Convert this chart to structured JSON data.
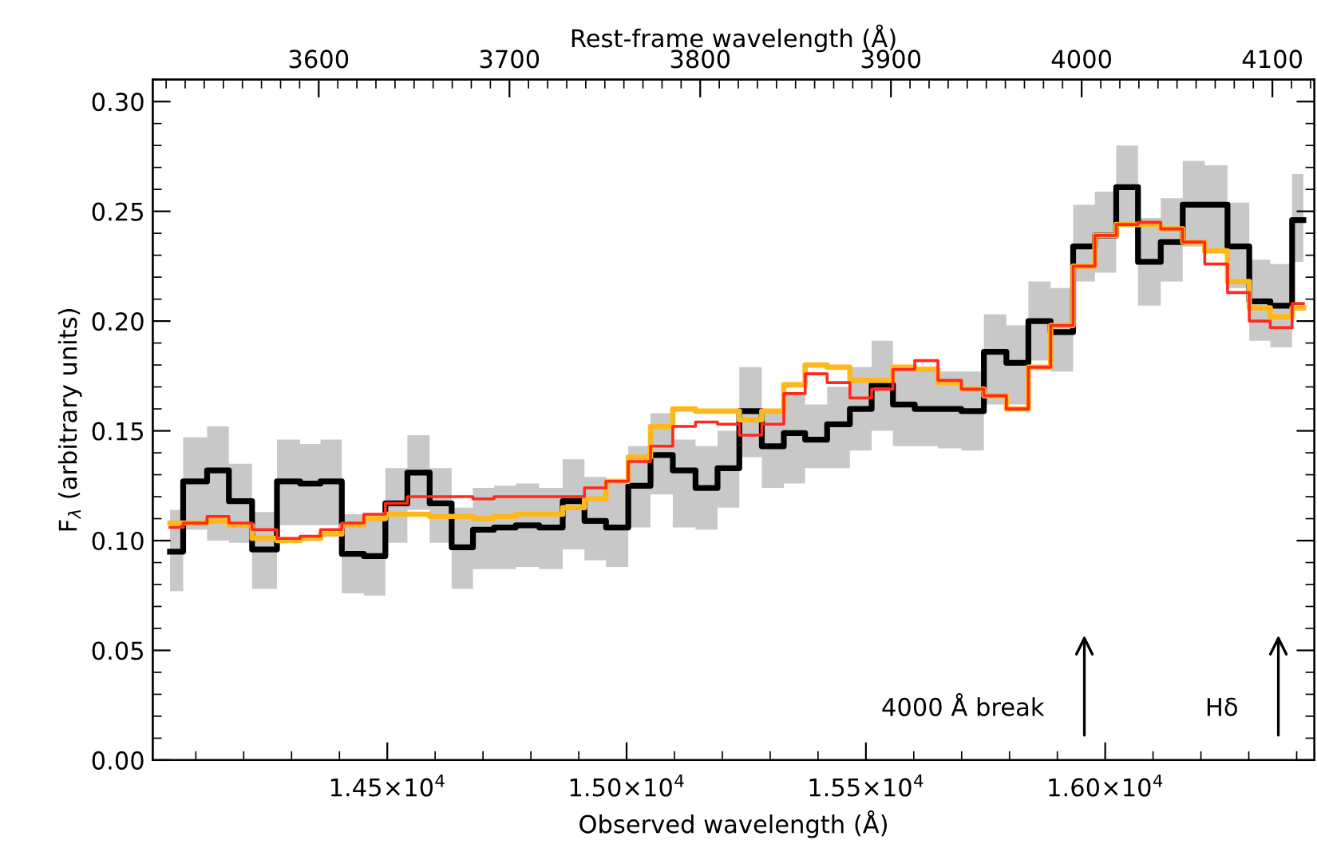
{
  "chart_data": {
    "type": "step",
    "xlabel": "Observed wavelength (Å)",
    "ylabel": "F$_{λ}$ (arbitrary units)",
    "x2label": "Rest-frame wavelength (Å)",
    "xlim": [
      14010,
      16437
    ],
    "ylim": [
      0,
      0.31
    ],
    "x2lim": [
      3513,
      4122
    ],
    "xticks": [
      {
        "value": 14500,
        "label": "1.45×10$^{4}$"
      },
      {
        "value": 15000,
        "label": "1.50×10$^{4}$"
      },
      {
        "value": 15500,
        "label": "1.55×10$^{4}$"
      },
      {
        "value": 16000,
        "label": "1.60×10$^{4}$"
      }
    ],
    "x2ticks": [
      3600,
      3700,
      3800,
      3900,
      4000,
      4100
    ],
    "yticks": [
      {
        "value": 0,
        "label": "0.00"
      },
      {
        "value": 0.05,
        "label": "0.05"
      },
      {
        "value": 0.1,
        "label": "0.10"
      },
      {
        "value": 0.15,
        "label": "0.15"
      },
      {
        "value": 0.2,
        "label": "0.20"
      },
      {
        "value": 0.25,
        "label": "0.25"
      },
      {
        "value": 0.3,
        "label": "0.30"
      }
    ],
    "x": [
      14046,
      14101,
      14146,
      14192,
      14243,
      14296,
      14340,
      14381,
      14429,
      14473,
      14519,
      14565,
      14612,
      14657,
      14701,
      14745,
      14792,
      14843,
      14890,
      14934,
      14980,
      15027,
      15073,
      15120,
      15168,
      15212,
      15259,
      15306,
      15351,
      15395,
      15443,
      15490,
      15534,
      15579,
      15625,
      15676,
      15723,
      15770,
      15817,
      15862,
      15910,
      15956,
      16001,
      16045,
      16092,
      16140,
      16184,
      16232,
      16279,
      16323,
      16367,
      16414
    ],
    "series": [
      {
        "color": "#000000",
        "values": [
          0.095,
          0.127,
          0.132,
          0.118,
          0.096,
          0.127,
          0.126,
          0.127,
          0.094,
          0.093,
          0.117,
          0.131,
          0.117,
          0.097,
          0.105,
          0.106,
          0.107,
          0.106,
          0.118,
          0.109,
          0.106,
          0.125,
          0.139,
          0.132,
          0.124,
          0.133,
          0.159,
          0.143,
          0.149,
          0.146,
          0.153,
          0.16,
          0.171,
          0.162,
          0.16,
          0.16,
          0.159,
          0.186,
          0.181,
          0.2,
          0.195,
          0.234,
          0.239,
          0.261,
          0.227,
          0.236,
          0.253,
          0.253,
          0.234,
          0.209,
          0.207,
          0.246
        ],
        "lower": [
          0.077,
          0.105,
          0.1,
          0.099,
          0.078,
          0.107,
          0.107,
          0.107,
          0.076,
          0.075,
          0.099,
          0.114,
          0.099,
          0.078,
          0.087,
          0.087,
          0.088,
          0.087,
          0.096,
          0.091,
          0.088,
          0.106,
          0.121,
          0.106,
          0.105,
          0.115,
          0.138,
          0.124,
          0.126,
          0.133,
          0.133,
          0.141,
          0.15,
          0.143,
          0.143,
          0.142,
          0.141,
          0.162,
          0.162,
          0.182,
          0.177,
          0.218,
          0.222,
          0.244,
          0.207,
          0.218,
          0.234,
          0.232,
          0.215,
          0.191,
          0.188,
          0.227
        ],
        "upper": [
          0.114,
          0.147,
          0.152,
          0.135,
          0.113,
          0.146,
          0.144,
          0.146,
          0.112,
          0.112,
          0.133,
          0.148,
          0.133,
          0.115,
          0.124,
          0.125,
          0.126,
          0.124,
          0.137,
          0.129,
          0.127,
          0.143,
          0.158,
          0.146,
          0.143,
          0.15,
          0.179,
          0.158,
          0.167,
          0.162,
          0.17,
          0.179,
          0.191,
          0.179,
          0.179,
          0.177,
          0.177,
          0.203,
          0.198,
          0.218,
          0.215,
          0.253,
          0.259,
          0.28,
          0.247,
          0.256,
          0.273,
          0.271,
          0.254,
          0.228,
          0.226,
          0.267
        ]
      },
      {
        "color": "#ffb81c",
        "values": [
          0.108,
          0.108,
          0.109,
          0.107,
          0.101,
          0.1,
          0.101,
          0.103,
          0.107,
          0.11,
          0.112,
          0.112,
          0.111,
          0.111,
          0.11,
          0.111,
          0.112,
          0.112,
          0.115,
          0.119,
          0.127,
          0.138,
          0.152,
          0.16,
          0.159,
          0.159,
          0.155,
          0.159,
          0.171,
          0.18,
          0.179,
          0.173,
          0.173,
          0.179,
          0.178,
          0.172,
          0.169,
          0.166,
          0.16,
          0.179,
          0.198,
          0.225,
          0.239,
          0.244,
          0.244,
          0.242,
          0.236,
          0.232,
          0.218,
          0.206,
          0.202,
          0.206
        ]
      },
      {
        "color": "#ff2a1a",
        "values": [
          0.106,
          0.108,
          0.111,
          0.108,
          0.105,
          0.101,
          0.102,
          0.105,
          0.108,
          0.112,
          0.117,
          0.12,
          0.12,
          0.12,
          0.119,
          0.12,
          0.12,
          0.12,
          0.12,
          0.124,
          0.127,
          0.136,
          0.143,
          0.152,
          0.154,
          0.153,
          0.148,
          0.153,
          0.167,
          0.176,
          0.172,
          0.165,
          0.169,
          0.178,
          0.182,
          0.173,
          0.169,
          0.166,
          0.16,
          0.179,
          0.198,
          0.225,
          0.239,
          0.244,
          0.245,
          0.242,
          0.236,
          0.226,
          0.213,
          0.2,
          0.197,
          0.208
        ]
      }
    ],
    "annotations": [
      "4000 Å break",
      "Hδ"
    ]
  }
}
